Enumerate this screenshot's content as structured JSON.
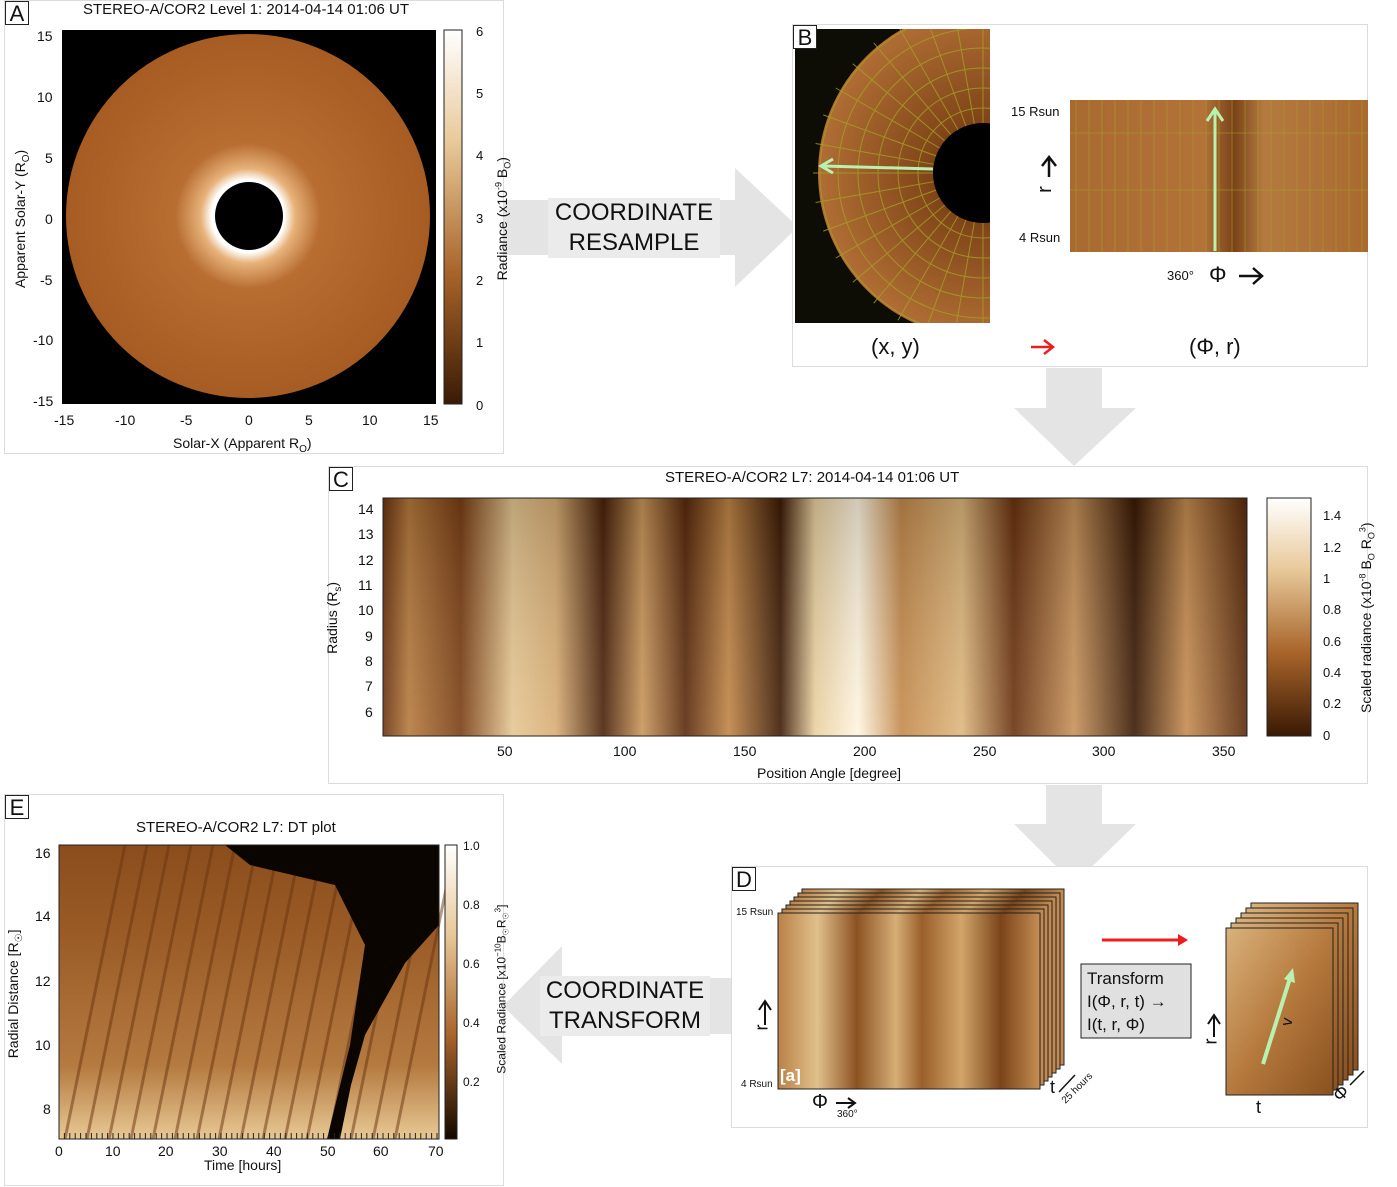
{
  "panels": {
    "a": {
      "letter": "A",
      "title": "STEREO-A/COR2 Level 1: 2014-04-14 01:06 UT",
      "xlabel": "Solar-X (Apparent R",
      "xlabel_sub": "O",
      "xlabel_end": ")",
      "ylabel": "Apparent Solar-Y (R",
      "ylabel_sub": "O",
      "ylabel_end": ")",
      "xticks": [
        "-15",
        "-10",
        "-5",
        "0",
        "5",
        "10",
        "15"
      ],
      "yticks": [
        "15",
        "10",
        "5",
        "0",
        "-5",
        "-10",
        "-15"
      ],
      "cbar_ticks": [
        "6",
        "5",
        "4",
        "3",
        "2",
        "1",
        "0"
      ],
      "cbar_label": "Radiance (x10",
      "cbar_label_exp": "-9",
      "cbar_label_mid": " B",
      "cbar_label_sub": "O",
      "cbar_label_end": ")"
    },
    "b": {
      "letter": "B",
      "label_r_top": "15 Rsun",
      "label_r_bottom": "4 Rsun",
      "label_phi_start": "360°",
      "phi_symbol": "Φ",
      "r_symbol": "r",
      "left_caption": "(x, y)",
      "right_caption": "(Φ, r)"
    },
    "c": {
      "letter": "C",
      "title": "STEREO-A/COR2 L7: 2014-04-14 01:06 UT",
      "xlabel": "Position Angle [degree]",
      "ylabel": "Radius (R",
      "ylabel_sub": "s",
      "ylabel_end": ")",
      "xticks": [
        "50",
        "100",
        "150",
        "200",
        "250",
        "300",
        "350"
      ],
      "yticks": [
        "14",
        "13",
        "12",
        "11",
        "10",
        "9",
        "8",
        "7",
        "6"
      ],
      "cbar_ticks": [
        "1.4",
        "1.2",
        "1",
        "0.8",
        "0.6",
        "0.4",
        "0.2",
        "0"
      ],
      "cbar_label": "Scaled radiance (x10",
      "cbar_label_exp": "-8",
      "cbar_label_mid": " B",
      "cbar_label_sub": "O",
      "cbar_label_mid2": " R",
      "cbar_label_sub2": "O",
      "cbar_label_exp2": "3",
      "cbar_label_end": ")"
    },
    "d": {
      "letter": "D",
      "label_r_top": "15 Rsun",
      "label_r_bottom": "4 Rsun",
      "stack_tag": "[a]",
      "phi_symbol": "Φ",
      "phi_end": "360°",
      "r_symbol": "r",
      "t_symbol": "t",
      "t_span": "25 hours",
      "transform_line1": "Transform",
      "transform_line2": "I(Φ, r, t) →",
      "transform_line3": "I(t, r, Φ)",
      "v_symbol": "v",
      "right_t": "t",
      "right_r": "r",
      "right_phi": "Φ"
    },
    "e": {
      "letter": "E",
      "title": "STEREO-A/COR2 L7: DT plot",
      "xlabel": "Time [hours]",
      "ylabel": "Radial Distance [R",
      "ylabel_sub": "☉",
      "ylabel_end": "]",
      "xticks": [
        "0",
        "10",
        "20",
        "30",
        "40",
        "50",
        "60",
        "70"
      ],
      "yticks": [
        "16",
        "14",
        "12",
        "10",
        "8"
      ],
      "cbar_ticks": [
        "1.0",
        "0.8",
        "0.6",
        "0.4",
        "0.2"
      ],
      "cbar_label": "Scaled Radiance [x10",
      "cbar_label_exp": "−10",
      "cbar_label_mid": "B",
      "cbar_label_sub": "☉",
      "cbar_label_mid2": "R",
      "cbar_label_sub2": "☉",
      "cbar_label_exp2": "3",
      "cbar_label_end": "]"
    }
  },
  "callouts": {
    "resample_line1": "COORDINATE",
    "resample_line2": "RESAMPLE",
    "transform_line1": "COORDINATE",
    "transform_line2": "TRANSFORM"
  },
  "colors": {
    "brown_dark": "#3a1a05",
    "brown_mid": "#a8642a",
    "brown_light": "#f3e2c4",
    "arrow_gray": "#e3e3e3",
    "accent_red": "#ee1c1c",
    "accent_green": "#b9f2b0"
  }
}
